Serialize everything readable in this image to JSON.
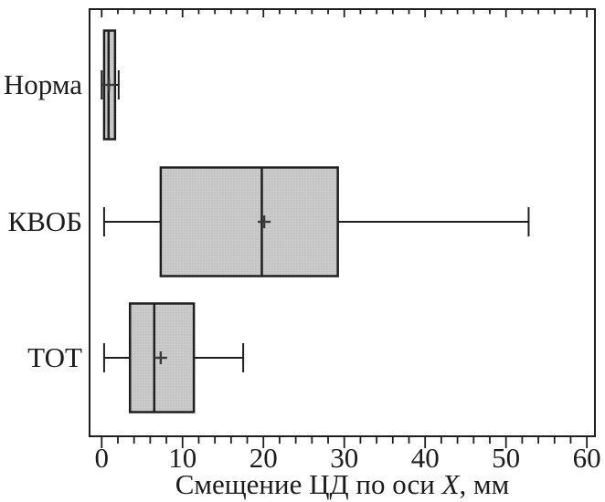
{
  "chart_data": {
    "type": "boxplot",
    "orientation": "horizontal",
    "title": "",
    "categories": [
      "Норма",
      "КВОБ",
      "ТОТ"
    ],
    "series": [
      {
        "name": "Норма",
        "whisker_low": 0.0,
        "q1": 0.3,
        "median": 0.85,
        "q3": 1.65,
        "whisker_high": 2.1,
        "mean": 0.9
      },
      {
        "name": "КВОБ",
        "whisker_low": 0.3,
        "q1": 7.3,
        "median": 19.8,
        "q3": 29.2,
        "whisker_high": 52.8,
        "mean": 20.1
      },
      {
        "name": "ТОТ",
        "whisker_low": 0.3,
        "q1": 3.5,
        "median": 6.5,
        "q3": 11.4,
        "whisker_high": 17.5,
        "mean": 7.3
      }
    ],
    "xlabel": "Смещение ЦД по оси X, мм",
    "xlabel_parts": {
      "prefix": "Смещение ЦД по оси ",
      "italic": "X",
      "suffix": ", мм"
    },
    "x_ticks_major": [
      0,
      10,
      20,
      30,
      40,
      50,
      60
    ],
    "x_minor_step": 2,
    "xlim": [
      -1.5,
      61.0
    ],
    "grid": false,
    "legend": "none",
    "colors": {
      "box_fill": "#cbcbcb",
      "box_stipple": "#999999",
      "line": "#1f1f1f",
      "mean_marker": "#3a3a3a",
      "background": "#ffffff"
    }
  }
}
